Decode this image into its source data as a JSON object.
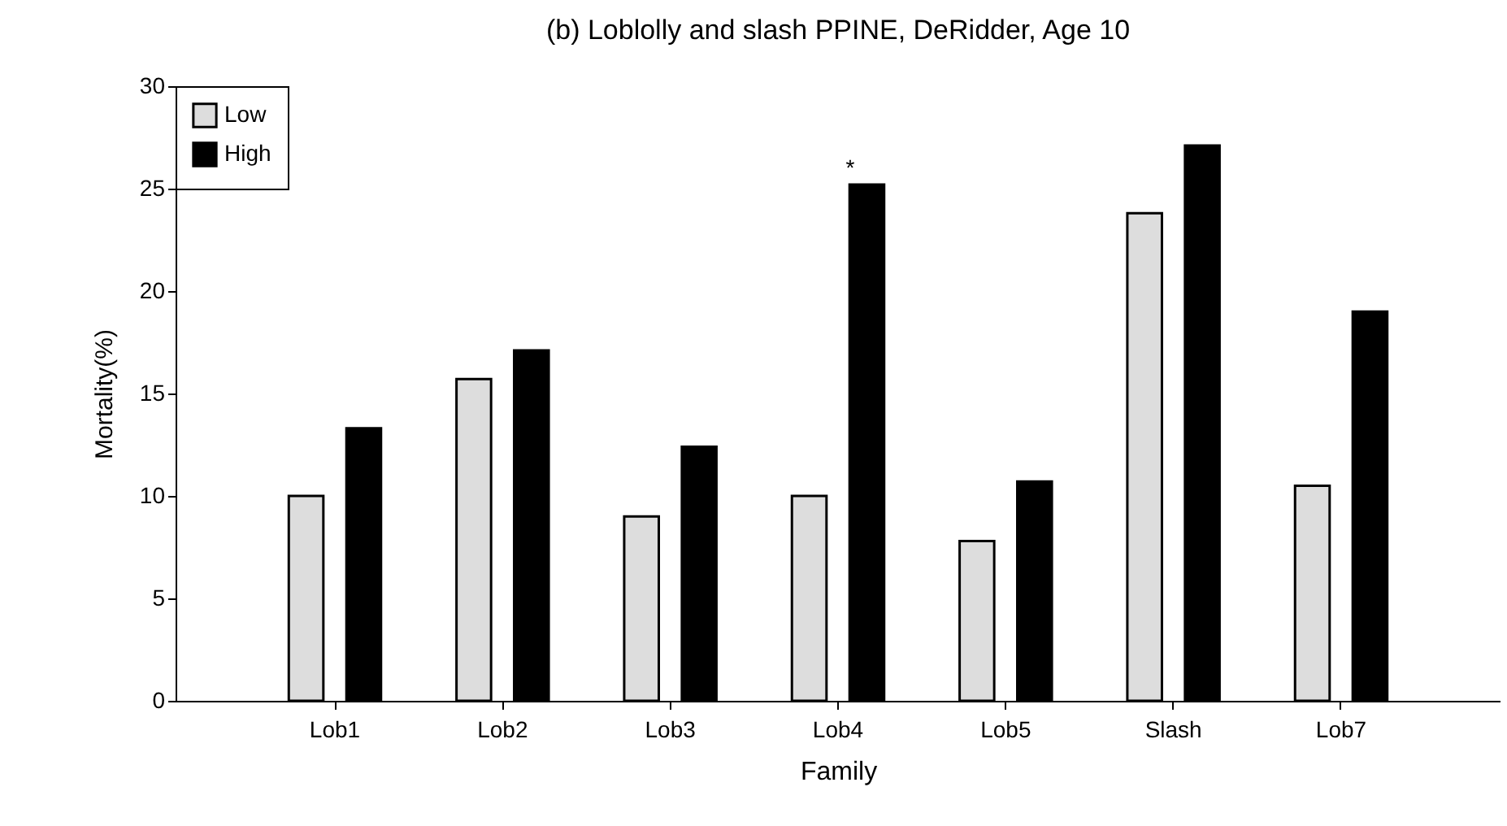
{
  "chart_data": {
    "type": "bar",
    "title": "(b) Loblolly and slash PPINE, DeRidder, Age 10",
    "xlabel": "Family",
    "ylabel": "Mortality(%)",
    "categories": [
      "Lob1",
      "Lob2",
      "Lob3",
      "Lob4",
      "Lob5",
      "Slash",
      "Lob7"
    ],
    "series": [
      {
        "name": "Low",
        "color": "#dddddd",
        "values": [
          10.0,
          15.7,
          9.0,
          10.0,
          7.8,
          23.8,
          10.5
        ]
      },
      {
        "name": "High",
        "color": "#000000",
        "values": [
          13.3,
          17.1,
          12.4,
          25.2,
          10.7,
          27.1,
          19.0
        ]
      }
    ],
    "ylim": [
      0,
      30
    ],
    "yticks": [
      0,
      5,
      10,
      15,
      20,
      25,
      30
    ],
    "grid": false,
    "legend": "top left",
    "annotations": [
      "*"
    ]
  }
}
